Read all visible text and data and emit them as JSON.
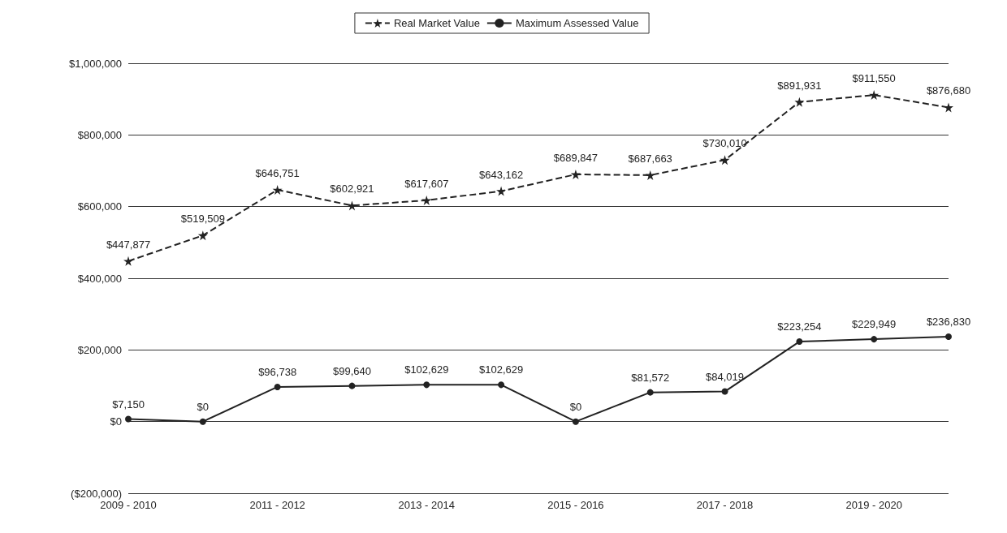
{
  "chart_data": {
    "type": "line",
    "categories": [
      "2009 - 2010",
      null,
      "2011 - 2012",
      null,
      "2013 - 2014",
      null,
      "2015 - 2016",
      null,
      "2017 - 2018",
      null,
      "2019 - 2020",
      null
    ],
    "series": [
      {
        "name": "Real Market Value",
        "color": "#222222",
        "marker": "star",
        "line_style": "dashed",
        "values": [
          447877,
          519509,
          646751,
          602921,
          617607,
          643162,
          689847,
          687663,
          730010,
          891931,
          911550,
          876680
        ],
        "value_labels": [
          "$447,877",
          "$519,509",
          "$646,751",
          "$602,921",
          "$617,607",
          "$643,162",
          "$689,847",
          "$687,663",
          "$730,010",
          "$891,931",
          "$911,550",
          "$876,680"
        ]
      },
      {
        "name": "Maximum Assessed Value",
        "color": "#222222",
        "marker": "circle",
        "line_style": "solid",
        "values": [
          7150,
          0,
          96738,
          99640,
          102629,
          102629,
          0,
          81572,
          84019,
          223254,
          229949,
          236830
        ],
        "value_labels": [
          "$7,150",
          "$0",
          "$96,738",
          "$99,640",
          "$102,629",
          "$102,629",
          "$0",
          "$81,572",
          "$84,019",
          "$223,254",
          "$229,949",
          "$236,830"
        ]
      }
    ],
    "ylim": [
      -200000,
      1000000
    ],
    "yticks": [
      {
        "value": -200000,
        "label": "($200,000)"
      },
      {
        "value": 0,
        "label": "$0"
      },
      {
        "value": 200000,
        "label": "$200,000"
      },
      {
        "value": 400000,
        "label": "$400,000"
      },
      {
        "value": 600000,
        "label": "$600,000"
      },
      {
        "value": 800000,
        "label": "$800,000"
      },
      {
        "value": 1000000,
        "label": "$1,000,000"
      }
    ],
    "grid": "y",
    "legend": "top"
  }
}
